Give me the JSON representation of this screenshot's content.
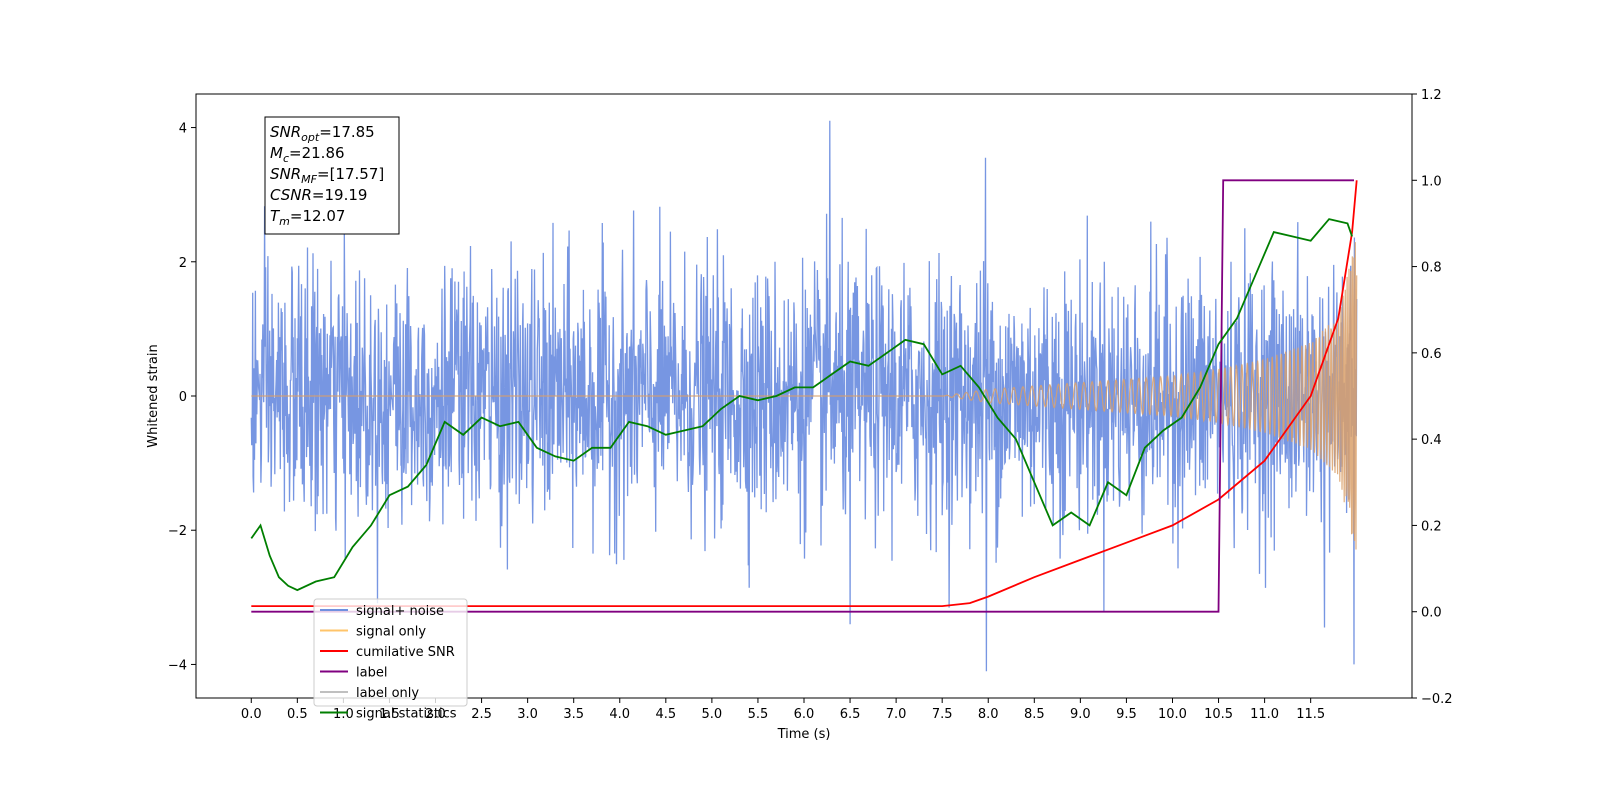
{
  "chart_data": {
    "type": "line",
    "xlabel": "Time (s)",
    "ylabel": "Whitened strain",
    "xlim": [
      -0.6,
      12.6
    ],
    "ylim": [
      -4.5,
      4.5
    ],
    "y2lim": [
      -0.2,
      1.2
    ],
    "x_ticks": [
      "0.0",
      "0.5",
      "1.0",
      "1.5",
      "2.0",
      "2.5",
      "3.0",
      "3.5",
      "4.0",
      "4.5",
      "5.0",
      "5.5",
      "6.0",
      "6.5",
      "7.0",
      "7.5",
      "8.0",
      "8.5",
      "9.0",
      "9.5",
      "10.0",
      "10.5",
      "11.0",
      "11.5"
    ],
    "y_ticks": [
      "4",
      "2",
      "0",
      "−2",
      "−4"
    ],
    "y2_ticks": [
      "1.2",
      "1.0",
      "0.8",
      "0.6",
      "0.4",
      "0.2",
      "0.0",
      "−0.2"
    ],
    "grid": false,
    "legend_position": "lower-left",
    "legend": [
      {
        "label": "signal+ noise",
        "color": "#7090e0"
      },
      {
        "label": "signal only",
        "color": "#ffc46a"
      },
      {
        "label": "cumilative SNR",
        "color": "#ff0000"
      },
      {
        "label": "label",
        "color": "#800080"
      },
      {
        "label": "label only",
        "color": "#c0c0c0"
      },
      {
        "label": "signal statistics",
        "color": "#007f00"
      }
    ],
    "annotation": [
      {
        "base": "SNR",
        "sub": "opt",
        "value": "=17.85"
      },
      {
        "base": "M",
        "sub": "c",
        "value": "=21.86"
      },
      {
        "base": "SNR",
        "sub": "MF",
        "value": "=[17.57]"
      },
      {
        "base": "CSNR",
        "sub": "",
        "value": "=19.19"
      },
      {
        "base": "T",
        "sub": "m",
        "value": "=12.07"
      }
    ],
    "series": [
      {
        "name": "signal+ noise",
        "axis": "left",
        "color": "#7090e0",
        "t_range": [
          0.0,
          12.0
        ],
        "amplitude_std": 0.95,
        "notable_peaks": [
          [
            6.28,
            4.1
          ],
          [
            7.97,
            3.55
          ],
          [
            7.98,
            -4.1
          ],
          [
            6.5,
            -3.4
          ],
          [
            11.97,
            -4.0
          ],
          [
            11.65,
            -3.45
          ]
        ]
      },
      {
        "name": "signal only",
        "axis": "left",
        "color": "#d9a06a",
        "t_range": [
          0.0,
          12.0
        ],
        "envelope": [
          [
            0.0,
            0.0
          ],
          [
            7.5,
            0.0
          ],
          [
            8.0,
            0.1
          ],
          [
            9.0,
            0.2
          ],
          [
            10.0,
            0.3
          ],
          [
            10.5,
            0.4
          ],
          [
            11.0,
            0.55
          ],
          [
            11.5,
            0.8
          ],
          [
            11.8,
            1.2
          ],
          [
            12.0,
            2.4
          ]
        ]
      },
      {
        "name": "cumilative SNR",
        "axis": "right",
        "color": "#ff0000",
        "x": [
          0.0,
          7.5,
          7.8,
          8.0,
          8.5,
          9.0,
          9.5,
          10.0,
          10.5,
          11.0,
          11.5,
          11.8,
          11.95,
          12.0
        ],
        "y": [
          0.013,
          0.013,
          0.02,
          0.035,
          0.08,
          0.12,
          0.16,
          0.2,
          0.26,
          0.35,
          0.5,
          0.68,
          0.88,
          1.0
        ]
      },
      {
        "name": "label",
        "axis": "right",
        "color": "#800080",
        "x": [
          0.0,
          10.5,
          10.55,
          11.97
        ],
        "y": [
          0.0,
          0.0,
          1.0,
          1.0
        ]
      },
      {
        "name": "signal statistics",
        "axis": "right",
        "color": "#007f00",
        "x": [
          0.0,
          0.1,
          0.2,
          0.3,
          0.4,
          0.5,
          0.7,
          0.9,
          1.1,
          1.3,
          1.5,
          1.7,
          1.9,
          2.1,
          2.3,
          2.5,
          2.7,
          2.9,
          3.1,
          3.3,
          3.5,
          3.7,
          3.9,
          4.1,
          4.3,
          4.5,
          4.7,
          4.9,
          5.1,
          5.3,
          5.5,
          5.7,
          5.9,
          6.1,
          6.3,
          6.5,
          6.7,
          6.9,
          7.1,
          7.3,
          7.5,
          7.7,
          7.9,
          8.1,
          8.3,
          8.5,
          8.7,
          8.9,
          9.1,
          9.3,
          9.5,
          9.7,
          9.9,
          10.1,
          10.3,
          10.5,
          10.7,
          10.9,
          11.1,
          11.3,
          11.5,
          11.7,
          11.9,
          11.95
        ],
        "y": [
          0.17,
          0.2,
          0.13,
          0.08,
          0.06,
          0.05,
          0.07,
          0.08,
          0.15,
          0.2,
          0.27,
          0.29,
          0.34,
          0.44,
          0.41,
          0.45,
          0.43,
          0.44,
          0.38,
          0.36,
          0.35,
          0.38,
          0.38,
          0.44,
          0.43,
          0.41,
          0.42,
          0.43,
          0.47,
          0.5,
          0.49,
          0.5,
          0.52,
          0.52,
          0.55,
          0.58,
          0.57,
          0.6,
          0.63,
          0.62,
          0.55,
          0.57,
          0.52,
          0.45,
          0.4,
          0.3,
          0.2,
          0.23,
          0.2,
          0.3,
          0.27,
          0.38,
          0.42,
          0.45,
          0.52,
          0.62,
          0.68,
          0.78,
          0.88,
          0.87,
          0.86,
          0.91,
          0.9,
          0.87
        ]
      }
    ]
  }
}
